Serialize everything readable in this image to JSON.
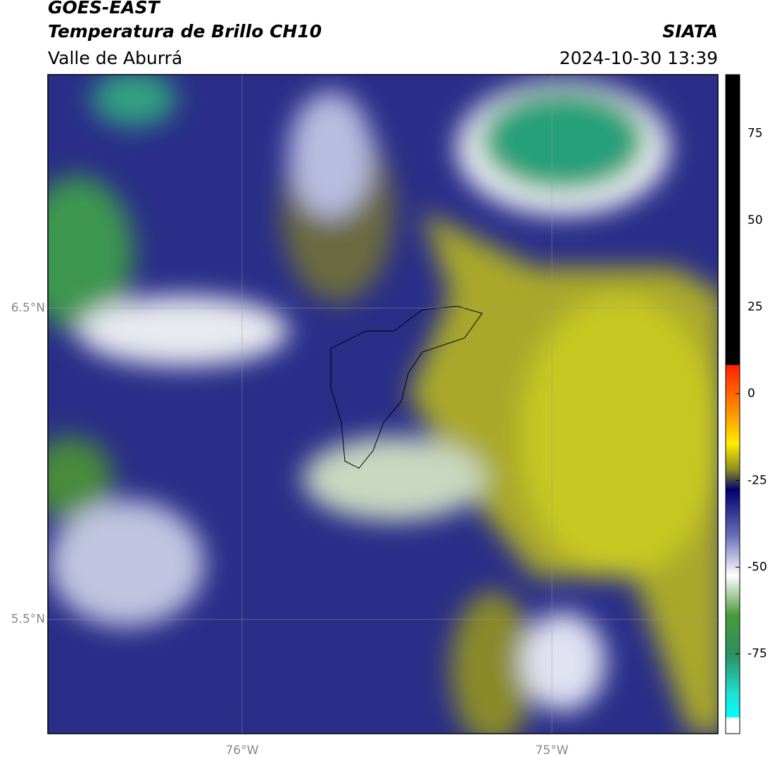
{
  "header": {
    "satellite": "GOES-EAST",
    "product": "Temperatura de Brillo CH10",
    "region": "Valle de Aburrá",
    "source": "SIATA",
    "datetime": "2024-10-30 13:39"
  },
  "map": {
    "latlim": [
      5.133,
      7.25
    ],
    "lonlim": [
      -76.627,
      -74.464
    ],
    "lat_ticks": [
      {
        "value": 6.5,
        "label": "6.5°N"
      },
      {
        "value": 5.5,
        "label": "5.5°N"
      }
    ],
    "lon_ticks": [
      {
        "value": -76,
        "label": "76°W"
      },
      {
        "value": -75,
        "label": "75°W"
      }
    ]
  },
  "colorbar": {
    "range": [
      -98,
      92
    ],
    "ticks": [
      75,
      50,
      25,
      0,
      -25,
      -50,
      -75
    ]
  }
}
